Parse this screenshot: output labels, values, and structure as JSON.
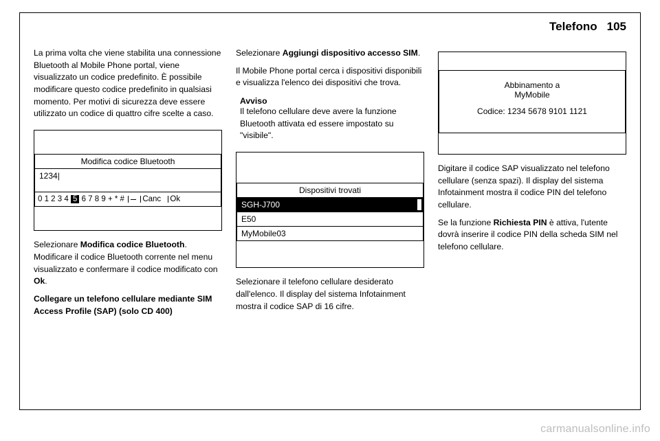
{
  "header": {
    "section": "Telefono",
    "page": "105"
  },
  "col1": {
    "p1": "La prima volta che viene stabilita una connessione Bluetooth al Mobile Phone portal, viene visualizzato un codice predefinito. È possibile modificare questo codice predefinito in qualsiasi momento. Per motivi di sicurezza deve essere utilizzato un codice di quattro cifre scelte a caso.",
    "shot": {
      "title": "Modifica codice Bluetooth",
      "value": "1234",
      "keys_before": "0 1 2 3 4",
      "keys_sel": "5",
      "keys_after": "6 7 8 9 + * #",
      "canc": "Canc",
      "ok": "Ok"
    },
    "p2a": "Selezionare ",
    "p2b": "Modifica codice Bluetooth",
    "p2c": ". Modificare il codice Bluetooth corrente nel menu visualizzato e confermare il codice modificato con ",
    "p2d": "Ok",
    "p2e": ".",
    "p3": "Collegare un telefono cellulare mediante SIM Access Profile (SAP) (solo CD 400)"
  },
  "col2": {
    "p1a": "Selezionare ",
    "p1b": "Aggiungi dispositivo accesso SIM",
    "p1c": ".",
    "p2": "Il Mobile Phone portal cerca i dispositivi disponibili e visualizza l'elenco dei dispositivi che trova.",
    "avviso_label": "Avviso",
    "avviso_text": "Il telefono cellulare deve avere la funzione Bluetooth attivata ed essere impostato su \"visibile\".",
    "shot": {
      "title": "Dispositivi trovati",
      "items": [
        "SGH-J700",
        "E50",
        "MyMobile03"
      ],
      "selected": 0
    },
    "p3": "Selezionare il telefono cellulare desiderato dall'elenco. Il display del sistema Infotainment mostra il codice SAP di 16 cifre."
  },
  "col3": {
    "shot": {
      "line1": "Abbinamento a",
      "line2": "MyMobile",
      "line3": "Codice: 1234 5678 9101 1121"
    },
    "p1": "Digitare il codice SAP visualizzato nel telefono cellulare (senza spazi). Il display del sistema Infotainment mostra il codice PIN del telefono cellulare.",
    "p2a": "Se la funzione ",
    "p2b": "Richiesta PIN",
    "p2c": " è attiva, l'utente dovrà inserire il codice PIN della scheda SIM nel telefono cellulare."
  },
  "watermark": "carmanualsonline.info"
}
